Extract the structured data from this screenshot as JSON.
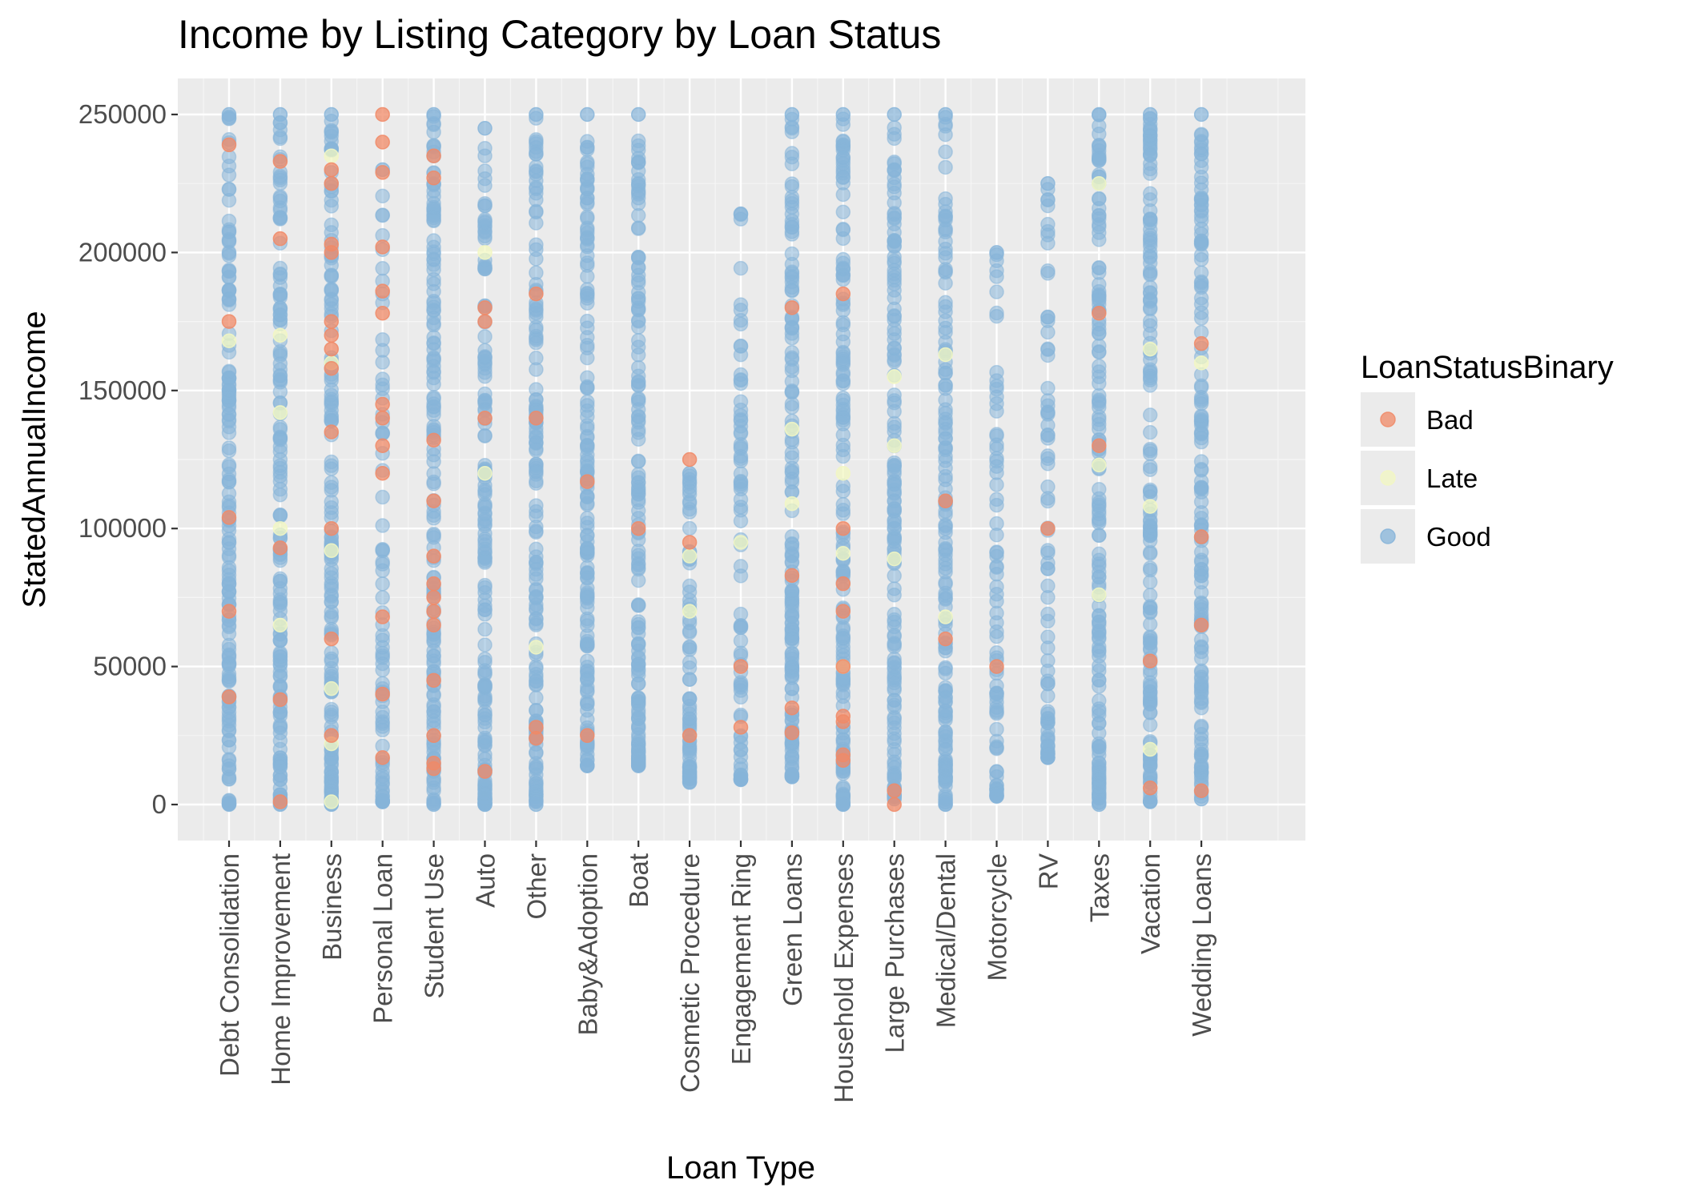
{
  "chart_data": {
    "type": "scatter",
    "title": "Income by Listing Category by Loan Status",
    "xlabel": "Loan Type",
    "ylabel": "StatedAnnualIncome",
    "x_scale": "categorical",
    "categories": [
      "Debt Consolidation",
      "Home Improvement",
      "Business",
      "Personal Loan",
      "Student Use",
      "Auto",
      "Other",
      "Baby&Adoption",
      "Boat",
      "Cosmetic Procedure",
      "Engagement Ring",
      "Green Loans",
      "Household Expenses",
      "Large Purchases",
      "Medical/Dental",
      "Motorcycle",
      "RV",
      "Taxes",
      "Vacation",
      "Wedding Loans"
    ],
    "ylim": [
      -15000,
      262000
    ],
    "yticks": [
      0,
      50000,
      100000,
      150000,
      200000,
      250000
    ],
    "ytick_labels": [
      "0",
      "50000",
      "100000",
      "150000",
      "200000",
      "250000"
    ],
    "grid": true,
    "legend": {
      "title": "LoanStatusBinary",
      "placement": "right",
      "entries": [
        "Bad",
        "Late",
        "Good"
      ]
    },
    "series_colors": {
      "Bad": "#f08a67",
      "Late": "#f2f7c2",
      "Good": "#86b4d9"
    },
    "series": [
      {
        "name": "Bad",
        "points": [
          [
            "Debt Consolidation",
            175000
          ],
          [
            "Debt Consolidation",
            104000
          ],
          [
            "Debt Consolidation",
            70000
          ],
          [
            "Debt Consolidation",
            39000
          ],
          [
            "Debt Consolidation",
            239000
          ],
          [
            "Home Improvement",
            233000
          ],
          [
            "Home Improvement",
            205000
          ],
          [
            "Home Improvement",
            93000
          ],
          [
            "Home Improvement",
            38000
          ],
          [
            "Home Improvement",
            1000
          ],
          [
            "Business",
            230000
          ],
          [
            "Business",
            225000
          ],
          [
            "Business",
            203000
          ],
          [
            "Business",
            200000
          ],
          [
            "Business",
            175000
          ],
          [
            "Business",
            170000
          ],
          [
            "Business",
            165000
          ],
          [
            "Business",
            158000
          ],
          [
            "Business",
            135000
          ],
          [
            "Business",
            100000
          ],
          [
            "Business",
            60000
          ],
          [
            "Business",
            25000
          ],
          [
            "Personal Loan",
            250000
          ],
          [
            "Personal Loan",
            240000
          ],
          [
            "Personal Loan",
            229000
          ],
          [
            "Personal Loan",
            202000
          ],
          [
            "Personal Loan",
            186000
          ],
          [
            "Personal Loan",
            178000
          ],
          [
            "Personal Loan",
            145000
          ],
          [
            "Personal Loan",
            140000
          ],
          [
            "Personal Loan",
            130000
          ],
          [
            "Personal Loan",
            120000
          ],
          [
            "Personal Loan",
            68000
          ],
          [
            "Personal Loan",
            40000
          ],
          [
            "Personal Loan",
            17000
          ],
          [
            "Student Use",
            235000
          ],
          [
            "Student Use",
            227000
          ],
          [
            "Student Use",
            132000
          ],
          [
            "Student Use",
            110000
          ],
          [
            "Student Use",
            90000
          ],
          [
            "Student Use",
            80000
          ],
          [
            "Student Use",
            75000
          ],
          [
            "Student Use",
            70000
          ],
          [
            "Student Use",
            65000
          ],
          [
            "Student Use",
            45000
          ],
          [
            "Student Use",
            25000
          ],
          [
            "Student Use",
            15000
          ],
          [
            "Student Use",
            13000
          ],
          [
            "Auto",
            180000
          ],
          [
            "Auto",
            175000
          ],
          [
            "Auto",
            140000
          ],
          [
            "Auto",
            12000
          ],
          [
            "Other",
            185000
          ],
          [
            "Other",
            140000
          ],
          [
            "Other",
            28000
          ],
          [
            "Other",
            24000
          ],
          [
            "Baby&Adoption",
            117000
          ],
          [
            "Baby&Adoption",
            25000
          ],
          [
            "Boat",
            100000
          ],
          [
            "Cosmetic Procedure",
            125000
          ],
          [
            "Cosmetic Procedure",
            95000
          ],
          [
            "Cosmetic Procedure",
            25000
          ],
          [
            "Engagement Ring",
            50000
          ],
          [
            "Engagement Ring",
            28000
          ],
          [
            "Green Loans",
            180000
          ],
          [
            "Green Loans",
            83000
          ],
          [
            "Green Loans",
            35000
          ],
          [
            "Green Loans",
            26000
          ],
          [
            "Household Expenses",
            185000
          ],
          [
            "Household Expenses",
            100000
          ],
          [
            "Household Expenses",
            80000
          ],
          [
            "Household Expenses",
            70000
          ],
          [
            "Household Expenses",
            50000
          ],
          [
            "Household Expenses",
            32000
          ],
          [
            "Household Expenses",
            30000
          ],
          [
            "Household Expenses",
            18000
          ],
          [
            "Household Expenses",
            16000
          ],
          [
            "Large Purchases",
            5000
          ],
          [
            "Large Purchases",
            0
          ],
          [
            "Medical/Dental",
            110000
          ],
          [
            "Medical/Dental",
            60000
          ],
          [
            "Motorcycle",
            50000
          ],
          [
            "RV",
            100000
          ],
          [
            "Taxes",
            178000
          ],
          [
            "Taxes",
            130000
          ],
          [
            "Vacation",
            52000
          ],
          [
            "Vacation",
            6000
          ],
          [
            "Wedding Loans",
            167000
          ],
          [
            "Wedding Loans",
            97000
          ],
          [
            "Wedding Loans",
            65000
          ],
          [
            "Wedding Loans",
            5000
          ]
        ]
      },
      {
        "name": "Late",
        "points": [
          [
            "Debt Consolidation",
            168000
          ],
          [
            "Home Improvement",
            170000
          ],
          [
            "Home Improvement",
            142000
          ],
          [
            "Home Improvement",
            100000
          ],
          [
            "Home Improvement",
            65000
          ],
          [
            "Business",
            235000
          ],
          [
            "Business",
            160000
          ],
          [
            "Business",
            92000
          ],
          [
            "Business",
            42000
          ],
          [
            "Business",
            22000
          ],
          [
            "Business",
            1000
          ],
          [
            "Auto",
            200000
          ],
          [
            "Auto",
            120000
          ],
          [
            "Other",
            57000
          ],
          [
            "Cosmetic Procedure",
            90000
          ],
          [
            "Cosmetic Procedure",
            70000
          ],
          [
            "Engagement Ring",
            95000
          ],
          [
            "Green Loans",
            136000
          ],
          [
            "Green Loans",
            109000
          ],
          [
            "Household Expenses",
            120000
          ],
          [
            "Household Expenses",
            91000
          ],
          [
            "Household Expenses",
            50000
          ],
          [
            "Large Purchases",
            155000
          ],
          [
            "Large Purchases",
            130000
          ],
          [
            "Large Purchases",
            89000
          ],
          [
            "Medical/Dental",
            163000
          ],
          [
            "Medical/Dental",
            68000
          ],
          [
            "Taxes",
            225000
          ],
          [
            "Taxes",
            123000
          ],
          [
            "Taxes",
            76000
          ],
          [
            "Vacation",
            165000
          ],
          [
            "Vacation",
            108000
          ],
          [
            "Vacation",
            20000
          ],
          [
            "Wedding Loans",
            160000
          ]
        ]
      },
      {
        "name": "Good",
        "range_note": "dense vertical strip of points at every category between the listed min and max",
        "ranges": [
          {
            "category": "Debt Consolidation",
            "min": 0,
            "max": 250000
          },
          {
            "category": "Home Improvement",
            "min": 0,
            "max": 250000
          },
          {
            "category": "Business",
            "min": 0,
            "max": 250000
          },
          {
            "category": "Personal Loan",
            "min": 1000,
            "max": 230000
          },
          {
            "category": "Student Use",
            "min": 0,
            "max": 250000
          },
          {
            "category": "Auto",
            "min": 0,
            "max": 245000
          },
          {
            "category": "Other",
            "min": 0,
            "max": 250000
          },
          {
            "category": "Baby&Adoption",
            "min": 14000,
            "max": 250000
          },
          {
            "category": "Boat",
            "min": 14000,
            "max": 250000
          },
          {
            "category": "Cosmetic Procedure",
            "min": 8000,
            "max": 120000
          },
          {
            "category": "Engagement Ring",
            "min": 9000,
            "max": 214000
          },
          {
            "category": "Green Loans",
            "min": 10000,
            "max": 250000
          },
          {
            "category": "Household Expenses",
            "min": 0,
            "max": 250000
          },
          {
            "category": "Large Purchases",
            "min": 2000,
            "max": 250000
          },
          {
            "category": "Medical/Dental",
            "min": 0,
            "max": 250000
          },
          {
            "category": "Motorcycle",
            "min": 3000,
            "max": 200000
          },
          {
            "category": "RV",
            "min": 17000,
            "max": 225000
          },
          {
            "category": "Taxes",
            "min": 0,
            "max": 250000
          },
          {
            "category": "Vacation",
            "min": 1000,
            "max": 250000
          },
          {
            "category": "Wedding Loans",
            "min": 2000,
            "max": 250000
          }
        ]
      }
    ]
  }
}
